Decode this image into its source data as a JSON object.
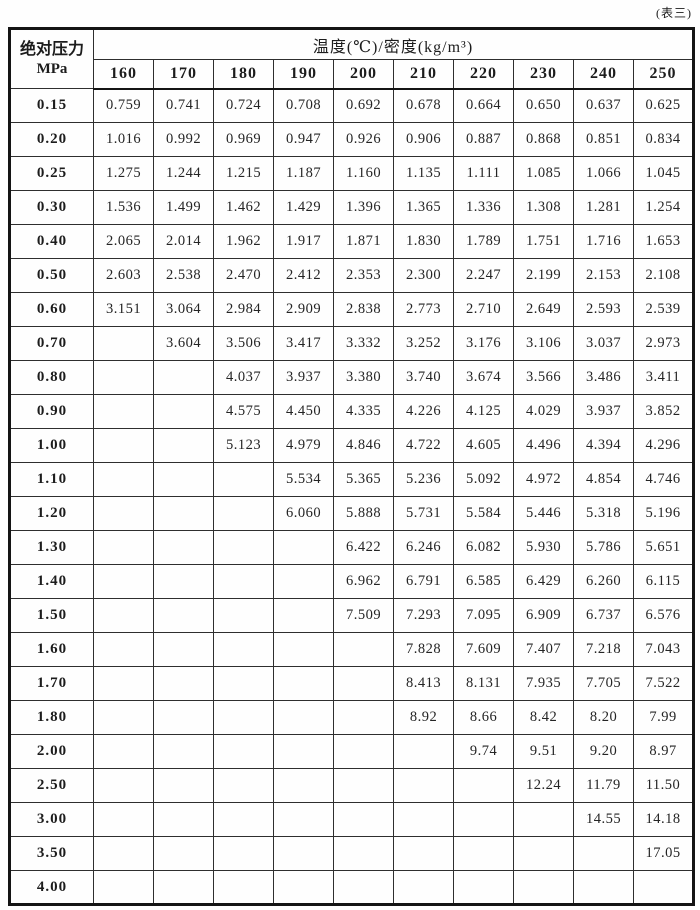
{
  "page": {
    "tag": "(表三)"
  },
  "table": {
    "corner": {
      "line1": "绝对压力",
      "line2": "MPa"
    },
    "span_header": "温度(℃)/密度(kg/m³)",
    "temperatures": [
      "160",
      "170",
      "180",
      "190",
      "200",
      "210",
      "220",
      "230",
      "240",
      "250"
    ],
    "rows": [
      {
        "pressure": "0.15",
        "values": [
          "0.759",
          "0.741",
          "0.724",
          "0.708",
          "0.692",
          "0.678",
          "0.664",
          "0.650",
          "0.637",
          "0.625"
        ]
      },
      {
        "pressure": "0.20",
        "values": [
          "1.016",
          "0.992",
          "0.969",
          "0.947",
          "0.926",
          "0.906",
          "0.887",
          "0.868",
          "0.851",
          "0.834"
        ]
      },
      {
        "pressure": "0.25",
        "values": [
          "1.275",
          "1.244",
          "1.215",
          "1.187",
          "1.160",
          "1.135",
          "1.111",
          "1.085",
          "1.066",
          "1.045"
        ]
      },
      {
        "pressure": "0.30",
        "values": [
          "1.536",
          "1.499",
          "1.462",
          "1.429",
          "1.396",
          "1.365",
          "1.336",
          "1.308",
          "1.281",
          "1.254"
        ]
      },
      {
        "pressure": "0.40",
        "values": [
          "2.065",
          "2.014",
          "1.962",
          "1.917",
          "1.871",
          "1.830",
          "1.789",
          "1.751",
          "1.716",
          "1.653"
        ]
      },
      {
        "pressure": "0.50",
        "values": [
          "2.603",
          "2.538",
          "2.470",
          "2.412",
          "2.353",
          "2.300",
          "2.247",
          "2.199",
          "2.153",
          "2.108"
        ]
      },
      {
        "pressure": "0.60",
        "values": [
          "3.151",
          "3.064",
          "2.984",
          "2.909",
          "2.838",
          "2.773",
          "2.710",
          "2.649",
          "2.593",
          "2.539"
        ]
      },
      {
        "pressure": "0.70",
        "values": [
          "",
          "3.604",
          "3.506",
          "3.417",
          "3.332",
          "3.252",
          "3.176",
          "3.106",
          "3.037",
          "2.973"
        ]
      },
      {
        "pressure": "0.80",
        "values": [
          "",
          "",
          "4.037",
          "3.937",
          "3.380",
          "3.740",
          "3.674",
          "3.566",
          "3.486",
          "3.411"
        ]
      },
      {
        "pressure": "0.90",
        "values": [
          "",
          "",
          "4.575",
          "4.450",
          "4.335",
          "4.226",
          "4.125",
          "4.029",
          "3.937",
          "3.852"
        ]
      },
      {
        "pressure": "1.00",
        "values": [
          "",
          "",
          "5.123",
          "4.979",
          "4.846",
          "4.722",
          "4.605",
          "4.496",
          "4.394",
          "4.296"
        ]
      },
      {
        "pressure": "1.10",
        "values": [
          "",
          "",
          "",
          "5.534",
          "5.365",
          "5.236",
          "5.092",
          "4.972",
          "4.854",
          "4.746"
        ]
      },
      {
        "pressure": "1.20",
        "values": [
          "",
          "",
          "",
          "6.060",
          "5.888",
          "5.731",
          "5.584",
          "5.446",
          "5.318",
          "5.196"
        ]
      },
      {
        "pressure": "1.30",
        "values": [
          "",
          "",
          "",
          "",
          "6.422",
          "6.246",
          "6.082",
          "5.930",
          "5.786",
          "5.651"
        ]
      },
      {
        "pressure": "1.40",
        "values": [
          "",
          "",
          "",
          "",
          "6.962",
          "6.791",
          "6.585",
          "6.429",
          "6.260",
          "6.115"
        ]
      },
      {
        "pressure": "1.50",
        "values": [
          "",
          "",
          "",
          "",
          "7.509",
          "7.293",
          "7.095",
          "6.909",
          "6.737",
          "6.576"
        ]
      },
      {
        "pressure": "1.60",
        "values": [
          "",
          "",
          "",
          "",
          "",
          "7.828",
          "7.609",
          "7.407",
          "7.218",
          "7.043"
        ]
      },
      {
        "pressure": "1.70",
        "values": [
          "",
          "",
          "",
          "",
          "",
          "8.413",
          "8.131",
          "7.935",
          "7.705",
          "7.522"
        ]
      },
      {
        "pressure": "1.80",
        "values": [
          "",
          "",
          "",
          "",
          "",
          "8.92",
          "8.66",
          "8.42",
          "8.20",
          "7.99"
        ]
      },
      {
        "pressure": "2.00",
        "values": [
          "",
          "",
          "",
          "",
          "",
          "",
          "9.74",
          "9.51",
          "9.20",
          "8.97"
        ]
      },
      {
        "pressure": "2.50",
        "values": [
          "",
          "",
          "",
          "",
          "",
          "",
          "",
          "12.24",
          "11.79",
          "11.50"
        ]
      },
      {
        "pressure": "3.00",
        "values": [
          "",
          "",
          "",
          "",
          "",
          "",
          "",
          "",
          "14.55",
          "14.18"
        ]
      },
      {
        "pressure": "3.50",
        "values": [
          "",
          "",
          "",
          "",
          "",
          "",
          "",
          "",
          "",
          "17.05"
        ]
      },
      {
        "pressure": "4.00",
        "values": [
          "",
          "",
          "",
          "",
          "",
          "",
          "",
          "",
          "",
          ""
        ]
      }
    ]
  }
}
